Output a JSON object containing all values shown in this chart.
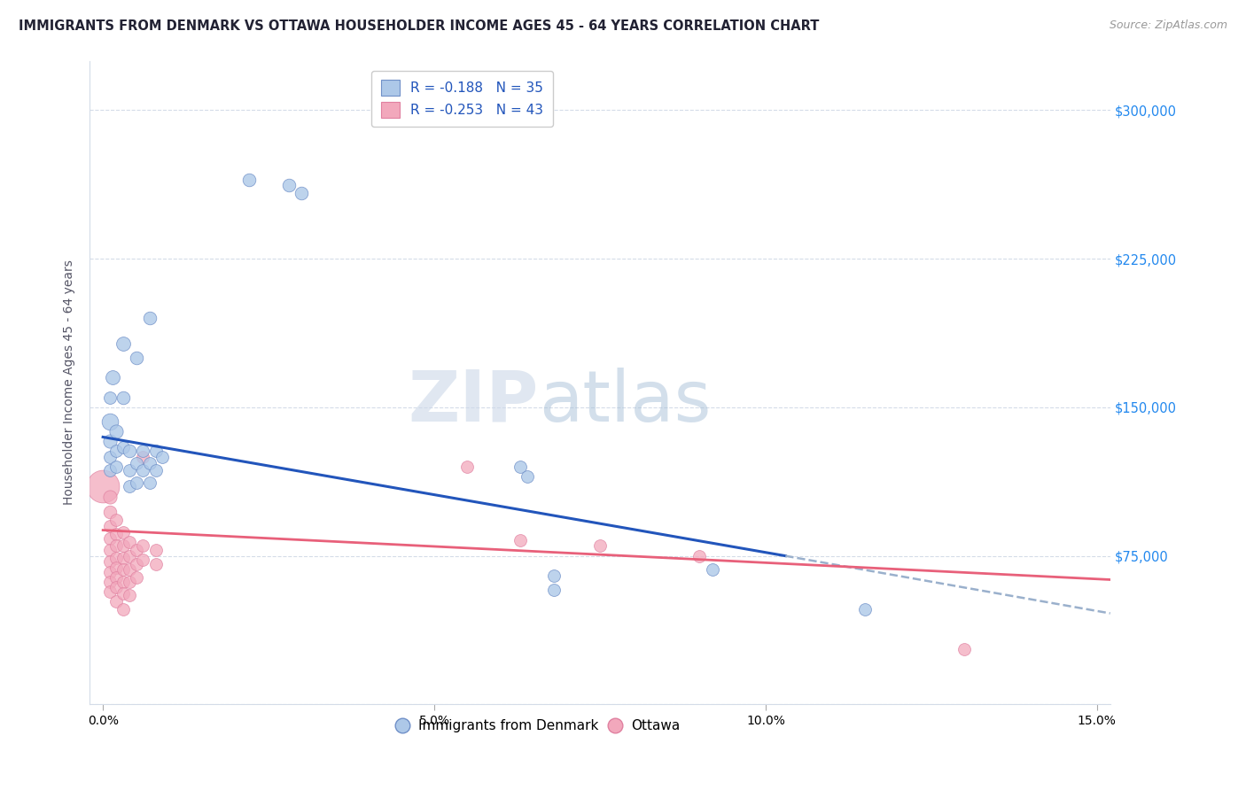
{
  "title": "IMMIGRANTS FROM DENMARK VS OTTAWA HOUSEHOLDER INCOME AGES 45 - 64 YEARS CORRELATION CHART",
  "source": "Source: ZipAtlas.com",
  "ylabel": "Householder Income Ages 45 - 64 years",
  "xlim": [
    -0.002,
    0.152
  ],
  "ylim": [
    0,
    325000
  ],
  "yticks": [
    0,
    75000,
    150000,
    225000,
    300000
  ],
  "ytick_labels_right": [
    "",
    "$75,000",
    "$150,000",
    "$225,000",
    "$300,000"
  ],
  "xticks": [
    0.0,
    0.05,
    0.1,
    0.15
  ],
  "xtick_labels": [
    "0.0%",
    "5.0%",
    "10.0%",
    "15.0%"
  ],
  "legend_label1": "R = -0.188   N = 35",
  "legend_label2": "R = -0.253   N = 43",
  "legend_bottom_label1": "Immigrants from Denmark",
  "legend_bottom_label2": "Ottawa",
  "color_blue": "#adc8e8",
  "color_pink": "#f2a8bc",
  "line_blue": "#2255bb",
  "line_pink": "#e8607a",
  "line_dashed_color": "#9ab0cc",
  "watermark_zip": "ZIP",
  "watermark_atlas": "atlas",
  "blue_line_x0": 0.0,
  "blue_line_y0": 135000,
  "blue_line_x1": 0.103,
  "blue_line_y1": 75000,
  "pink_line_x0": 0.0,
  "pink_line_y0": 88000,
  "pink_line_x1": 0.152,
  "pink_line_y1": 63000,
  "dash_line_x0": 0.103,
  "dash_line_y0": 75000,
  "dash_line_x1": 0.152,
  "dash_line_y1": 46000,
  "denmark_points": [
    [
      0.001,
      143000,
      180
    ],
    [
      0.001,
      133000,
      120
    ],
    [
      0.001,
      125000,
      100
    ],
    [
      0.001,
      118000,
      100
    ],
    [
      0.001,
      155000,
      100
    ],
    [
      0.002,
      138000,
      120
    ],
    [
      0.002,
      128000,
      100
    ],
    [
      0.002,
      120000,
      100
    ],
    [
      0.0015,
      165000,
      130
    ],
    [
      0.003,
      182000,
      130
    ],
    [
      0.003,
      155000,
      110
    ],
    [
      0.003,
      130000,
      100
    ],
    [
      0.004,
      128000,
      110
    ],
    [
      0.004,
      118000,
      100
    ],
    [
      0.004,
      110000,
      100
    ],
    [
      0.005,
      175000,
      110
    ],
    [
      0.005,
      122000,
      100
    ],
    [
      0.005,
      112000,
      100
    ],
    [
      0.006,
      128000,
      100
    ],
    [
      0.006,
      118000,
      100
    ],
    [
      0.007,
      195000,
      110
    ],
    [
      0.007,
      122000,
      100
    ],
    [
      0.007,
      112000,
      100
    ],
    [
      0.008,
      128000,
      100
    ],
    [
      0.008,
      118000,
      100
    ],
    [
      0.009,
      125000,
      100
    ],
    [
      0.022,
      265000,
      110
    ],
    [
      0.028,
      262000,
      110
    ],
    [
      0.03,
      258000,
      110
    ],
    [
      0.063,
      120000,
      100
    ],
    [
      0.064,
      115000,
      100
    ],
    [
      0.068,
      65000,
      100
    ],
    [
      0.068,
      58000,
      100
    ],
    [
      0.092,
      68000,
      100
    ],
    [
      0.115,
      48000,
      100
    ]
  ],
  "ottawa_points": [
    [
      0.0,
      110000,
      700
    ],
    [
      0.001,
      105000,
      120
    ],
    [
      0.001,
      97000,
      110
    ],
    [
      0.001,
      90000,
      100
    ],
    [
      0.001,
      84000,
      100
    ],
    [
      0.001,
      78000,
      100
    ],
    [
      0.001,
      72000,
      100
    ],
    [
      0.001,
      67000,
      100
    ],
    [
      0.001,
      62000,
      100
    ],
    [
      0.001,
      57000,
      100
    ],
    [
      0.002,
      93000,
      100
    ],
    [
      0.002,
      86000,
      100
    ],
    [
      0.002,
      80000,
      100
    ],
    [
      0.002,
      74000,
      100
    ],
    [
      0.002,
      69000,
      100
    ],
    [
      0.002,
      64000,
      100
    ],
    [
      0.002,
      59000,
      100
    ],
    [
      0.002,
      52000,
      100
    ],
    [
      0.003,
      87000,
      100
    ],
    [
      0.003,
      80000,
      100
    ],
    [
      0.003,
      74000,
      100
    ],
    [
      0.003,
      68000,
      100
    ],
    [
      0.003,
      62000,
      100
    ],
    [
      0.003,
      56000,
      100
    ],
    [
      0.003,
      48000,
      100
    ],
    [
      0.004,
      82000,
      100
    ],
    [
      0.004,
      75000,
      100
    ],
    [
      0.004,
      68000,
      100
    ],
    [
      0.004,
      62000,
      100
    ],
    [
      0.004,
      55000,
      100
    ],
    [
      0.005,
      78000,
      100
    ],
    [
      0.005,
      71000,
      100
    ],
    [
      0.005,
      64000,
      100
    ],
    [
      0.006,
      125000,
      100
    ],
    [
      0.006,
      80000,
      100
    ],
    [
      0.006,
      73000,
      100
    ],
    [
      0.008,
      78000,
      100
    ],
    [
      0.008,
      71000,
      100
    ],
    [
      0.055,
      120000,
      100
    ],
    [
      0.063,
      83000,
      100
    ],
    [
      0.075,
      80000,
      100
    ],
    [
      0.09,
      75000,
      100
    ],
    [
      0.13,
      28000,
      100
    ]
  ]
}
